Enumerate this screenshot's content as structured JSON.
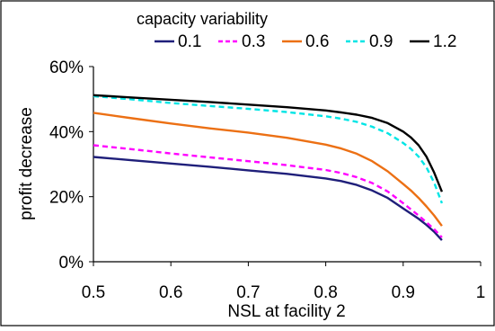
{
  "chart_data": {
    "type": "line",
    "legend_title": "capacity variability",
    "legend_position": "top",
    "xlabel": "NSL at facility 2",
    "ylabel": "profit decrease",
    "xlim": [
      0.5,
      1
    ],
    "ylim": [
      0,
      60
    ],
    "x_ticks": [
      "0.5",
      "0.6",
      "0.7",
      "0.8",
      "0.9",
      "1"
    ],
    "y_ticks": [
      "0%",
      "20%",
      "40%",
      "60%"
    ],
    "grid": false,
    "series": [
      {
        "name": "0.1",
        "color": "#1f1f7a",
        "dash": "solid",
        "x": [
          0.5,
          0.55,
          0.6,
          0.65,
          0.7,
          0.75,
          0.8,
          0.82,
          0.84,
          0.86,
          0.88,
          0.9,
          0.91,
          0.92,
          0.93,
          0.94,
          0.95
        ],
        "y": [
          32.2,
          31.2,
          30.2,
          29.2,
          28.1,
          27.0,
          25.6,
          24.8,
          23.6,
          21.9,
          19.6,
          16.4,
          14.8,
          13.2,
          11.3,
          9.2,
          6.6
        ]
      },
      {
        "name": "0.3",
        "color": "#ff00ff",
        "dash": "dotted",
        "x": [
          0.5,
          0.55,
          0.6,
          0.65,
          0.7,
          0.75,
          0.8,
          0.82,
          0.84,
          0.86,
          0.88,
          0.9,
          0.91,
          0.92,
          0.93,
          0.94,
          0.95
        ],
        "y": [
          35.8,
          34.6,
          33.3,
          32.1,
          30.9,
          29.7,
          28.2,
          27.3,
          26.0,
          24.2,
          21.6,
          18.0,
          16.1,
          14.2,
          12.1,
          10.0,
          7.5
        ]
      },
      {
        "name": "0.6",
        "color": "#ec7014",
        "dash": "solid",
        "x": [
          0.5,
          0.55,
          0.6,
          0.65,
          0.7,
          0.75,
          0.8,
          0.82,
          0.84,
          0.86,
          0.88,
          0.9,
          0.91,
          0.92,
          0.93,
          0.94,
          0.95
        ],
        "y": [
          45.8,
          44.1,
          42.5,
          41.0,
          39.7,
          38.1,
          36.0,
          34.8,
          33.2,
          30.9,
          27.8,
          23.9,
          21.9,
          19.6,
          17.0,
          14.2,
          11.0
        ]
      },
      {
        "name": "0.9",
        "color": "#00e5e5",
        "dash": "dotted",
        "x": [
          0.5,
          0.55,
          0.6,
          0.65,
          0.7,
          0.75,
          0.8,
          0.82,
          0.84,
          0.86,
          0.88,
          0.9,
          0.91,
          0.92,
          0.93,
          0.94,
          0.95
        ],
        "y": [
          50.9,
          49.9,
          48.8,
          47.9,
          47.0,
          46.0,
          44.7,
          44.0,
          43.0,
          41.5,
          39.5,
          36.5,
          34.7,
          32.3,
          29.0,
          24.3,
          18.0
        ]
      },
      {
        "name": "1.2",
        "color": "#000000",
        "dash": "solid",
        "x": [
          0.5,
          0.55,
          0.6,
          0.65,
          0.7,
          0.75,
          0.8,
          0.82,
          0.84,
          0.86,
          0.88,
          0.9,
          0.91,
          0.92,
          0.93,
          0.94,
          0.95
        ],
        "y": [
          51.2,
          50.5,
          49.8,
          49.1,
          48.3,
          47.5,
          46.5,
          45.9,
          45.2,
          44.2,
          42.6,
          40.0,
          38.2,
          35.8,
          32.3,
          27.4,
          21.5
        ]
      }
    ]
  }
}
